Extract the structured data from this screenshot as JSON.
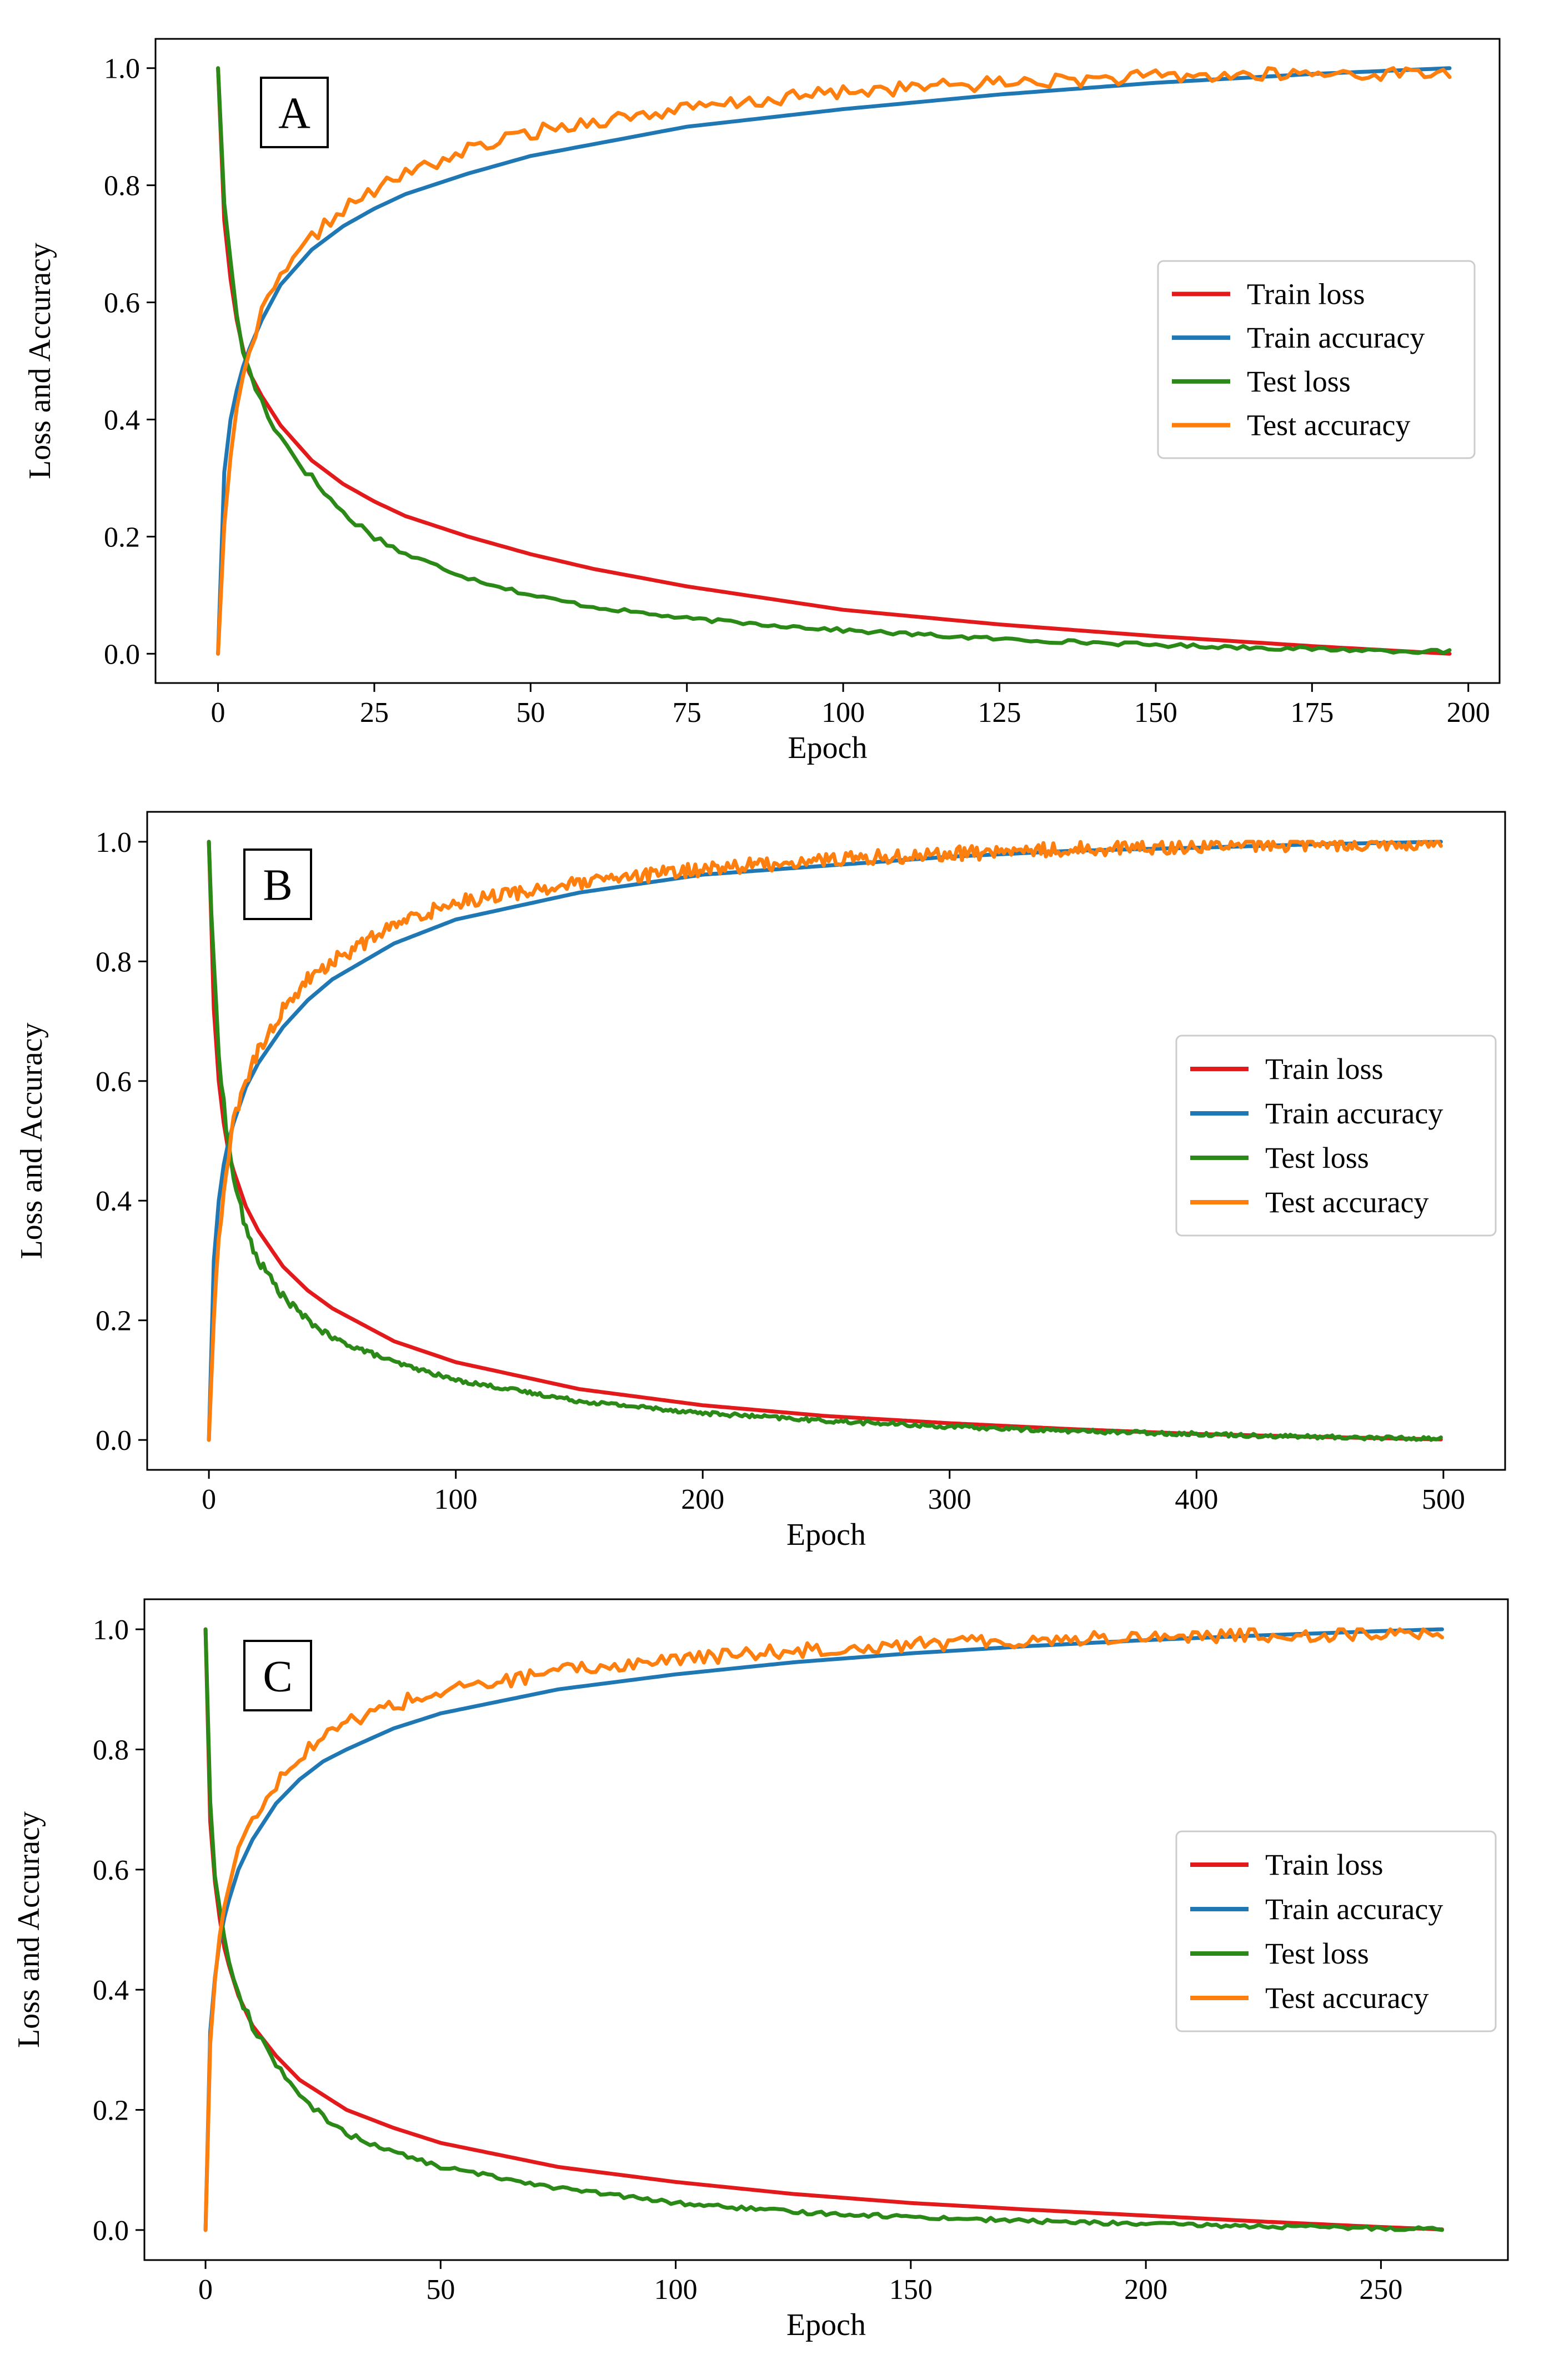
{
  "chart_data": [
    {
      "type": "line",
      "panel_label": "A",
      "xlabel": "Epoch",
      "ylabel": "Loss and Accuracy",
      "xlim": [
        -10,
        205
      ],
      "ylim": [
        -0.05,
        1.05
      ],
      "xticks": [
        0,
        25,
        50,
        75,
        100,
        125,
        150,
        175,
        200
      ],
      "yticks": [
        0.0,
        0.2,
        0.4,
        0.6,
        0.8,
        1.0
      ],
      "xtick_labels": [
        "0",
        "25",
        "50",
        "75",
        "100",
        "125",
        "150",
        "175",
        "200"
      ],
      "ytick_labels": [
        "0.0",
        "0.2",
        "0.4",
        "0.6",
        "0.8",
        "1.0"
      ],
      "legend_position": "center-right",
      "max_epoch": 197,
      "series": [
        {
          "name": "Train loss",
          "color": "#e31a1c",
          "kind": "loss_smooth",
          "x": [
            0,
            1,
            2,
            3,
            4,
            5,
            7,
            10,
            15,
            20,
            25,
            30,
            40,
            50,
            60,
            75,
            100,
            125,
            150,
            175,
            197
          ],
          "values": [
            1.0,
            0.74,
            0.64,
            0.57,
            0.52,
            0.48,
            0.44,
            0.39,
            0.33,
            0.29,
            0.26,
            0.235,
            0.2,
            0.17,
            0.145,
            0.115,
            0.075,
            0.05,
            0.03,
            0.013,
            0.0
          ]
        },
        {
          "name": "Train accuracy",
          "color": "#1f77b4",
          "kind": "acc_smooth",
          "x": [
            0,
            1,
            2,
            3,
            4,
            5,
            7,
            10,
            15,
            20,
            25,
            30,
            40,
            50,
            60,
            75,
            100,
            125,
            150,
            175,
            197
          ],
          "values": [
            0.0,
            0.31,
            0.4,
            0.45,
            0.49,
            0.52,
            0.57,
            0.63,
            0.69,
            0.73,
            0.76,
            0.785,
            0.82,
            0.85,
            0.87,
            0.9,
            0.93,
            0.955,
            0.975,
            0.99,
            1.0
          ]
        },
        {
          "name": "Test loss",
          "color": "#2b8a17",
          "kind": "loss_noisy",
          "x": [
            0,
            1,
            2,
            3,
            4,
            5,
            7,
            10,
            15,
            20,
            25,
            30,
            40,
            50,
            60,
            75,
            100,
            125,
            150,
            175,
            197
          ],
          "values": [
            1.0,
            0.78,
            0.66,
            0.58,
            0.52,
            0.48,
            0.43,
            0.37,
            0.3,
            0.24,
            0.2,
            0.17,
            0.13,
            0.1,
            0.08,
            0.06,
            0.04,
            0.025,
            0.015,
            0.008,
            0.003
          ]
        },
        {
          "name": "Test accuracy",
          "color": "#ff7f0e",
          "kind": "acc_noisy",
          "x": [
            0,
            1,
            2,
            3,
            4,
            5,
            7,
            10,
            15,
            20,
            25,
            30,
            40,
            50,
            60,
            75,
            100,
            125,
            150,
            175,
            197
          ],
          "values": [
            0.0,
            0.22,
            0.33,
            0.41,
            0.47,
            0.52,
            0.58,
            0.64,
            0.71,
            0.76,
            0.79,
            0.82,
            0.86,
            0.89,
            0.91,
            0.93,
            0.96,
            0.975,
            0.985,
            0.99,
            0.992
          ]
        }
      ]
    },
    {
      "type": "line",
      "panel_label": "B",
      "xlabel": "Epoch",
      "ylabel": "Loss and Accuracy",
      "xlim": [
        -25,
        525
      ],
      "ylim": [
        -0.05,
        1.05
      ],
      "xticks": [
        0,
        100,
        200,
        300,
        400,
        500
      ],
      "yticks": [
        0.0,
        0.2,
        0.4,
        0.6,
        0.8,
        1.0
      ],
      "xtick_labels": [
        "0",
        "100",
        "200",
        "300",
        "400",
        "500"
      ],
      "ytick_labels": [
        "0.0",
        "0.2",
        "0.4",
        "0.6",
        "0.8",
        "1.0"
      ],
      "legend_position": "center-right",
      "max_epoch": 499,
      "series": [
        {
          "name": "Train loss",
          "color": "#e31a1c",
          "kind": "loss_smooth",
          "x": [
            0,
            2,
            4,
            6,
            8,
            10,
            15,
            20,
            30,
            40,
            50,
            75,
            100,
            150,
            200,
            250,
            300,
            350,
            400,
            450,
            499
          ],
          "values": [
            1.0,
            0.72,
            0.6,
            0.53,
            0.48,
            0.45,
            0.39,
            0.35,
            0.29,
            0.25,
            0.22,
            0.165,
            0.13,
            0.085,
            0.058,
            0.04,
            0.028,
            0.018,
            0.01,
            0.005,
            0.001
          ]
        },
        {
          "name": "Train accuracy",
          "color": "#1f77b4",
          "kind": "acc_smooth",
          "x": [
            0,
            2,
            4,
            6,
            8,
            10,
            15,
            20,
            30,
            40,
            50,
            75,
            100,
            150,
            200,
            250,
            300,
            350,
            400,
            450,
            499
          ],
          "values": [
            0.0,
            0.3,
            0.4,
            0.46,
            0.5,
            0.53,
            0.59,
            0.63,
            0.69,
            0.735,
            0.77,
            0.83,
            0.87,
            0.915,
            0.945,
            0.96,
            0.975,
            0.985,
            0.99,
            0.996,
            1.0
          ]
        },
        {
          "name": "Test loss",
          "color": "#2b8a17",
          "kind": "loss_noisy",
          "x": [
            0,
            2,
            4,
            6,
            8,
            10,
            15,
            20,
            30,
            40,
            50,
            75,
            100,
            150,
            200,
            250,
            300,
            350,
            400,
            450,
            499
          ],
          "values": [
            1.0,
            0.78,
            0.66,
            0.56,
            0.49,
            0.44,
            0.35,
            0.3,
            0.24,
            0.2,
            0.17,
            0.13,
            0.1,
            0.065,
            0.045,
            0.032,
            0.022,
            0.015,
            0.01,
            0.005,
            0.002
          ]
        },
        {
          "name": "Test accuracy",
          "color": "#ff7f0e",
          "kind": "acc_noisy",
          "x": [
            0,
            2,
            4,
            6,
            8,
            10,
            15,
            20,
            30,
            40,
            50,
            75,
            100,
            150,
            200,
            250,
            300,
            350,
            400,
            450,
            499
          ],
          "values": [
            0.0,
            0.21,
            0.33,
            0.42,
            0.48,
            0.53,
            0.6,
            0.65,
            0.72,
            0.77,
            0.8,
            0.86,
            0.9,
            0.93,
            0.955,
            0.97,
            0.98,
            0.988,
            0.993,
            0.997,
            0.998
          ]
        }
      ]
    },
    {
      "type": "line",
      "panel_label": "C",
      "xlabel": "Epoch",
      "ylabel": "Loss and Accuracy",
      "xlim": [
        -13,
        277
      ],
      "ylim": [
        -0.05,
        1.05
      ],
      "xticks": [
        0,
        50,
        100,
        150,
        200,
        250
      ],
      "yticks": [
        0.0,
        0.2,
        0.4,
        0.6,
        0.8,
        1.0
      ],
      "xtick_labels": [
        "0",
        "50",
        "100",
        "150",
        "200",
        "250"
      ],
      "ytick_labels": [
        "0.0",
        "0.2",
        "0.4",
        "0.6",
        "0.8",
        "1.0"
      ],
      "legend_position": "center-right",
      "max_epoch": 263,
      "series": [
        {
          "name": "Train loss",
          "color": "#e31a1c",
          "kind": "loss_smooth",
          "x": [
            0,
            1,
            2,
            3,
            4,
            5,
            7,
            10,
            15,
            20,
            25,
            30,
            40,
            50,
            75,
            100,
            125,
            150,
            175,
            200,
            225,
            250,
            263
          ],
          "values": [
            1.0,
            0.68,
            0.58,
            0.52,
            0.47,
            0.44,
            0.39,
            0.34,
            0.29,
            0.25,
            0.225,
            0.2,
            0.17,
            0.145,
            0.105,
            0.08,
            0.06,
            0.045,
            0.034,
            0.024,
            0.014,
            0.005,
            0.001
          ]
        },
        {
          "name": "Train accuracy",
          "color": "#1f77b4",
          "kind": "acc_smooth",
          "x": [
            0,
            1,
            2,
            3,
            4,
            5,
            7,
            10,
            15,
            20,
            25,
            30,
            40,
            50,
            75,
            100,
            125,
            150,
            175,
            200,
            225,
            250,
            263
          ],
          "values": [
            0.0,
            0.33,
            0.42,
            0.48,
            0.52,
            0.55,
            0.6,
            0.65,
            0.71,
            0.75,
            0.78,
            0.8,
            0.835,
            0.86,
            0.9,
            0.925,
            0.945,
            0.96,
            0.972,
            0.982,
            0.99,
            0.997,
            1.0
          ]
        },
        {
          "name": "Test loss",
          "color": "#2b8a17",
          "kind": "loss_noisy",
          "x": [
            0,
            1,
            2,
            3,
            4,
            5,
            7,
            10,
            15,
            20,
            25,
            30,
            40,
            50,
            75,
            100,
            125,
            150,
            175,
            200,
            225,
            250,
            263
          ],
          "values": [
            1.0,
            0.72,
            0.6,
            0.53,
            0.48,
            0.45,
            0.39,
            0.34,
            0.28,
            0.22,
            0.19,
            0.16,
            0.13,
            0.105,
            0.07,
            0.045,
            0.03,
            0.022,
            0.015,
            0.01,
            0.006,
            0.003,
            0.002
          ]
        },
        {
          "name": "Test accuracy",
          "color": "#ff7f0e",
          "kind": "acc_noisy",
          "x": [
            0,
            1,
            2,
            3,
            4,
            5,
            7,
            10,
            15,
            20,
            25,
            30,
            40,
            50,
            75,
            100,
            125,
            150,
            175,
            200,
            225,
            250,
            263
          ],
          "values": [
            0.0,
            0.3,
            0.42,
            0.49,
            0.54,
            0.58,
            0.64,
            0.69,
            0.74,
            0.79,
            0.82,
            0.845,
            0.875,
            0.895,
            0.93,
            0.95,
            0.965,
            0.975,
            0.982,
            0.988,
            0.99,
            0.993,
            0.995
          ]
        }
      ]
    }
  ]
}
